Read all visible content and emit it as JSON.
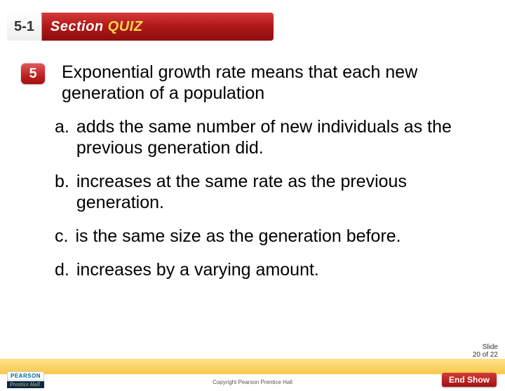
{
  "header": {
    "section_number": "5-1",
    "label_prefix": "Section",
    "label_suffix": "QUIZ"
  },
  "question": {
    "number": "5",
    "text": "Exponential growth rate means that each new generation of a population"
  },
  "options": [
    {
      "letter": "a.",
      "text": "adds the same number of new individuals as the previous generation did."
    },
    {
      "letter": "b.",
      "text": "increases at the same rate as the previous generation."
    },
    {
      "letter": "c.",
      "text": "is the same size as the generation before."
    },
    {
      "letter": "d.",
      "text": "increases by a varying amount."
    }
  ],
  "footer": {
    "slide_label_line1": "Slide",
    "slide_label_line2": "20 of 22",
    "end_show": "End Show",
    "copyright": "Copyright Pearson Prentice Hall",
    "logo_top": "PEARSON",
    "logo_bottom": "Prentice Hall"
  },
  "colors": {
    "banner_red": "#b01818",
    "quiz_yellow": "#ffd74a",
    "band_yellow": "#f7c94a",
    "badge_red": "#c22020",
    "logo_blue": "#006699",
    "logo_navy": "#0a2a4a"
  }
}
